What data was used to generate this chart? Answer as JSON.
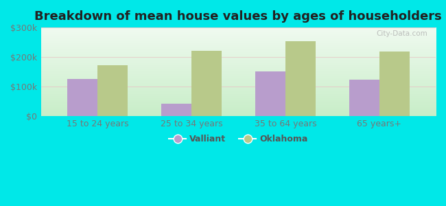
{
  "title": "Breakdown of mean house values by ages of householders",
  "categories": [
    "15 to 24 years",
    "25 to 34 years",
    "35 to 64 years",
    "65 years+"
  ],
  "valliant_values": [
    125000,
    42000,
    150000,
    122000
  ],
  "oklahoma_values": [
    172000,
    222000,
    253000,
    218000
  ],
  "valliant_color": "#b89dcc",
  "oklahoma_color": "#b8c98a",
  "background_color": "#00e8e8",
  "ylim": [
    0,
    300000
  ],
  "yticks": [
    0,
    100000,
    200000,
    300000
  ],
  "ytick_labels": [
    "$0",
    "$100k",
    "$200k",
    "$300k"
  ],
  "legend_valliant": "Valliant",
  "legend_oklahoma": "Oklahoma",
  "bar_width": 0.32,
  "title_fontsize": 13,
  "tick_fontsize": 9,
  "legend_fontsize": 9,
  "watermark_text": "City-Data.com"
}
